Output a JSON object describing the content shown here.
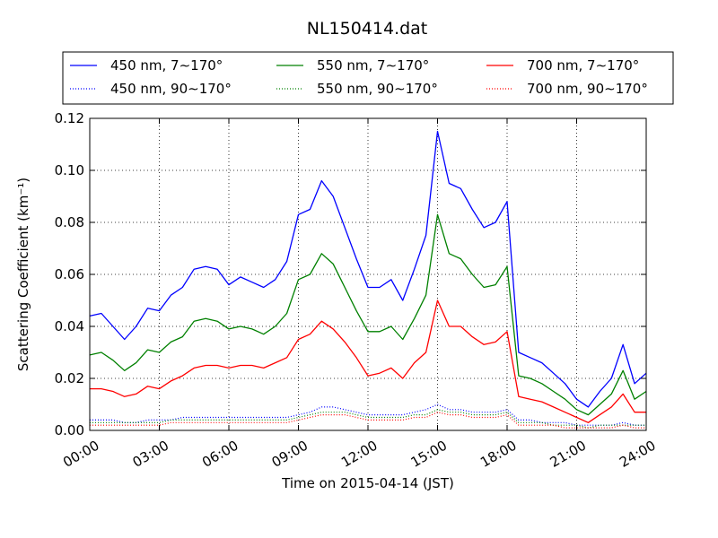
{
  "chart_data": {
    "type": "line",
    "title": "NL150414.dat",
    "xlabel": "Time on 2015-04-14 (JST)",
    "ylabel": "Scattering Coefficient (km⁻¹)",
    "xlim": [
      "00:00",
      "24:00"
    ],
    "ylim": [
      0,
      0.12
    ],
    "x_ticks": [
      "00:00",
      "03:00",
      "06:00",
      "09:00",
      "12:00",
      "15:00",
      "18:00",
      "21:00",
      "24:00"
    ],
    "y_ticks": [
      "0.00",
      "0.02",
      "0.04",
      "0.06",
      "0.08",
      "0.10",
      "0.12"
    ],
    "grid": true,
    "legend_position": "top-center",
    "x_hours": [
      0,
      0.5,
      1,
      1.5,
      2,
      2.5,
      3,
      3.5,
      4,
      4.5,
      5,
      5.5,
      6,
      6.5,
      7,
      7.5,
      8,
      8.5,
      9,
      9.5,
      10,
      10.5,
      11,
      11.5,
      12,
      12.5,
      13,
      13.5,
      14,
      14.5,
      15,
      15.5,
      16,
      16.5,
      17,
      17.5,
      18,
      18.5,
      19,
      19.5,
      20,
      20.5,
      21,
      21.5,
      22,
      22.5,
      23,
      23.5,
      24
    ],
    "series": [
      {
        "name": "450 nm, 7∼170°",
        "color": "#0000ff",
        "style": "solid",
        "values": [
          0.044,
          0.045,
          0.04,
          0.035,
          0.04,
          0.047,
          0.046,
          0.052,
          0.055,
          0.062,
          0.063,
          0.062,
          0.056,
          0.059,
          0.057,
          0.055,
          0.058,
          0.065,
          0.083,
          0.085,
          0.096,
          0.09,
          0.078,
          0.066,
          0.055,
          0.055,
          0.058,
          0.05,
          0.062,
          0.075,
          0.115,
          0.095,
          0.093,
          0.085,
          0.078,
          0.08,
          0.088,
          0.03,
          0.028,
          0.026,
          0.022,
          0.018,
          0.012,
          0.009,
          0.015,
          0.02,
          0.033,
          0.018,
          0.022
        ]
      },
      {
        "name": "550 nm, 7∼170°",
        "color": "#008000",
        "style": "solid",
        "values": [
          0.029,
          0.03,
          0.027,
          0.023,
          0.026,
          0.031,
          0.03,
          0.034,
          0.036,
          0.042,
          0.043,
          0.042,
          0.039,
          0.04,
          0.039,
          0.037,
          0.04,
          0.045,
          0.058,
          0.06,
          0.068,
          0.064,
          0.055,
          0.046,
          0.038,
          0.038,
          0.04,
          0.035,
          0.043,
          0.052,
          0.083,
          0.068,
          0.066,
          0.06,
          0.055,
          0.056,
          0.063,
          0.021,
          0.02,
          0.018,
          0.015,
          0.012,
          0.008,
          0.006,
          0.01,
          0.014,
          0.023,
          0.012,
          0.015
        ]
      },
      {
        "name": "700 nm, 7∼170°",
        "color": "#ff0000",
        "style": "solid",
        "values": [
          0.016,
          0.016,
          0.015,
          0.013,
          0.014,
          0.017,
          0.016,
          0.019,
          0.021,
          0.024,
          0.025,
          0.025,
          0.024,
          0.025,
          0.025,
          0.024,
          0.026,
          0.028,
          0.035,
          0.037,
          0.042,
          0.039,
          0.034,
          0.028,
          0.021,
          0.022,
          0.024,
          0.02,
          0.026,
          0.03,
          0.05,
          0.04,
          0.04,
          0.036,
          0.033,
          0.034,
          0.038,
          0.013,
          0.012,
          0.011,
          0.009,
          0.007,
          0.005,
          0.003,
          0.006,
          0.009,
          0.014,
          0.007,
          0.007
        ]
      },
      {
        "name": "450 nm, 90∼170°",
        "color": "#0000ff",
        "style": "dotted",
        "values": [
          0.004,
          0.004,
          0.004,
          0.003,
          0.003,
          0.004,
          0.004,
          0.004,
          0.005,
          0.005,
          0.005,
          0.005,
          0.005,
          0.005,
          0.005,
          0.005,
          0.005,
          0.005,
          0.006,
          0.007,
          0.009,
          0.009,
          0.008,
          0.007,
          0.006,
          0.006,
          0.006,
          0.006,
          0.007,
          0.008,
          0.01,
          0.008,
          0.008,
          0.007,
          0.007,
          0.007,
          0.008,
          0.004,
          0.004,
          0.003,
          0.003,
          0.003,
          0.002,
          0.002,
          0.002,
          0.002,
          0.003,
          0.002,
          0.002
        ]
      },
      {
        "name": "550 nm, 90∼170°",
        "color": "#008000",
        "style": "dotted",
        "values": [
          0.003,
          0.003,
          0.003,
          0.003,
          0.003,
          0.003,
          0.003,
          0.004,
          0.004,
          0.004,
          0.004,
          0.004,
          0.004,
          0.004,
          0.004,
          0.004,
          0.004,
          0.004,
          0.005,
          0.006,
          0.007,
          0.007,
          0.007,
          0.006,
          0.005,
          0.005,
          0.005,
          0.005,
          0.006,
          0.006,
          0.008,
          0.007,
          0.007,
          0.006,
          0.006,
          0.006,
          0.007,
          0.003,
          0.003,
          0.003,
          0.002,
          0.002,
          0.002,
          0.001,
          0.002,
          0.002,
          0.002,
          0.002,
          0.002
        ]
      },
      {
        "name": "700 nm, 90∼170°",
        "color": "#ff0000",
        "style": "dotted",
        "values": [
          0.002,
          0.002,
          0.002,
          0.002,
          0.002,
          0.002,
          0.002,
          0.003,
          0.003,
          0.003,
          0.003,
          0.003,
          0.003,
          0.003,
          0.003,
          0.003,
          0.003,
          0.003,
          0.004,
          0.005,
          0.006,
          0.006,
          0.006,
          0.005,
          0.004,
          0.004,
          0.004,
          0.004,
          0.005,
          0.005,
          0.007,
          0.006,
          0.006,
          0.005,
          0.005,
          0.005,
          0.006,
          0.002,
          0.002,
          0.002,
          0.002,
          0.001,
          0.001,
          0.001,
          0.001,
          0.001,
          0.002,
          0.001,
          0.001
        ]
      }
    ]
  }
}
